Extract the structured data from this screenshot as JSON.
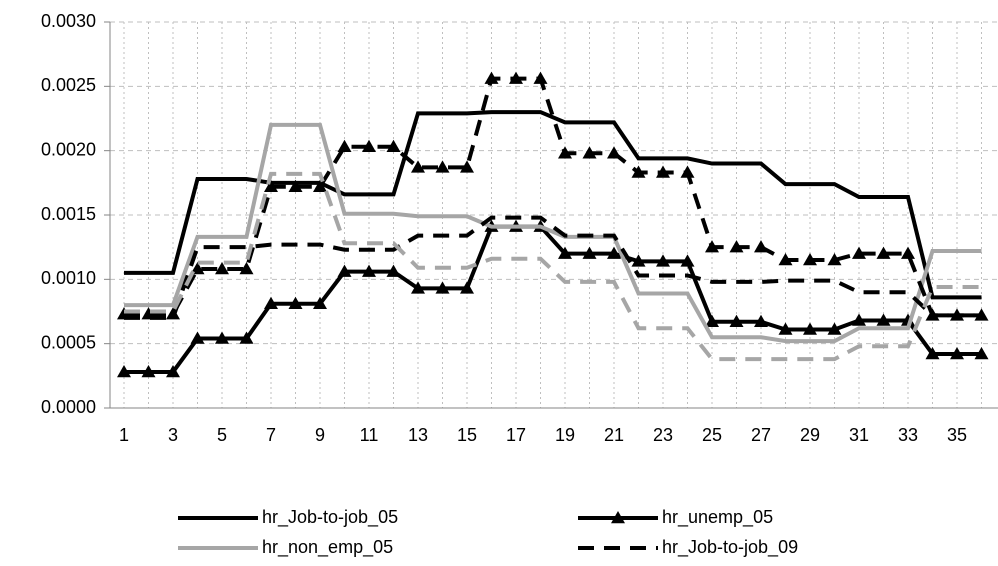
{
  "chart_data": {
    "type": "line",
    "categories": [
      1,
      null,
      3,
      null,
      5,
      null,
      7,
      null,
      9,
      null,
      11,
      null,
      13,
      null,
      15,
      null,
      17,
      null,
      19,
      null,
      21,
      null,
      23,
      null,
      25,
      null,
      27,
      null,
      29,
      null,
      31,
      null,
      33,
      null,
      35,
      null
    ],
    "ylim": [
      0,
      0.003
    ],
    "yticks": [
      {
        "value": 0,
        "label": "0.0000"
      },
      {
        "value": 0.0005,
        "label": "0.0005"
      },
      {
        "value": 0.001,
        "label": "0.0010"
      },
      {
        "value": 0.0015,
        "label": "0.0015"
      },
      {
        "value": 0.002,
        "label": "0.0020"
      },
      {
        "value": 0.0025,
        "label": "0.0025"
      },
      {
        "value": 0.003,
        "label": "0.0030"
      }
    ],
    "grid": true,
    "series": [
      {
        "name": "hr_Job-to-job_05",
        "color": "#000000",
        "dash": false,
        "marker": false,
        "values": [
          0.00105,
          0.00105,
          0.00105,
          0.00178,
          0.00178,
          0.00178,
          0.00175,
          0.00175,
          0.00175,
          0.00166,
          0.00166,
          0.00166,
          0.00229,
          0.00229,
          0.00229,
          0.0023,
          0.0023,
          0.0023,
          0.00222,
          0.00222,
          0.00222,
          0.00194,
          0.00194,
          0.00194,
          0.0019,
          0.0019,
          0.0019,
          0.00174,
          0.00174,
          0.00174,
          0.00164,
          0.00164,
          0.00164,
          0.00086,
          0.00086,
          0.00086
        ]
      },
      {
        "name": "hr_unemp_05",
        "color": "#000000",
        "dash": false,
        "marker": true,
        "values": [
          0.00028,
          0.00028,
          0.00028,
          0.00054,
          0.00054,
          0.00054,
          0.00081,
          0.00081,
          0.00081,
          0.00106,
          0.00106,
          0.00106,
          0.00093,
          0.00093,
          0.00093,
          0.00141,
          0.00141,
          0.00141,
          0.0012,
          0.0012,
          0.0012,
          0.00114,
          0.00114,
          0.00114,
          0.00067,
          0.00067,
          0.00067,
          0.00061,
          0.00061,
          0.00061,
          0.00068,
          0.00068,
          0.00068,
          0.00042,
          0.00042,
          0.00042
        ]
      },
      {
        "name": "hr_non_emp_05",
        "color": "#a6a6a6",
        "dash": false,
        "marker": false,
        "values": [
          0.0008,
          0.0008,
          0.0008,
          0.00133,
          0.00133,
          0.00133,
          0.0022,
          0.0022,
          0.0022,
          0.00151,
          0.00151,
          0.00151,
          0.00149,
          0.00149,
          0.00149,
          0.00141,
          0.00141,
          0.00141,
          0.00133,
          0.00133,
          0.00133,
          0.00089,
          0.00089,
          0.00089,
          0.00055,
          0.00055,
          0.00055,
          0.00052,
          0.00052,
          0.00052,
          0.00062,
          0.00062,
          0.00062,
          0.00122,
          0.00122,
          0.00122
        ]
      },
      {
        "name": "hr_Job-to-job_09",
        "color": "#000000",
        "dash": true,
        "marker": false,
        "values": [
          0.0007,
          0.0007,
          0.0007,
          0.00125,
          0.00125,
          0.00125,
          0.00127,
          0.00127,
          0.00127,
          0.00123,
          0.00123,
          0.00123,
          0.00134,
          0.00134,
          0.00134,
          0.00148,
          0.00148,
          0.00148,
          0.00134,
          0.00134,
          0.00134,
          0.00103,
          0.00103,
          0.00103,
          0.00098,
          0.00098,
          0.00098,
          0.00099,
          0.00099,
          0.00099,
          0.0009,
          0.0009,
          0.0009,
          0.00072,
          0.00072,
          0.00072
        ]
      },
      {
        "color": "#000000",
        "dash": true,
        "marker": true,
        "values": [
          0.00073,
          0.00073,
          0.00073,
          0.00108,
          0.00108,
          0.00108,
          0.00172,
          0.00172,
          0.00172,
          0.00203,
          0.00203,
          0.00203,
          0.00187,
          0.00187,
          0.00187,
          0.00256,
          0.00256,
          0.00256,
          0.00198,
          0.00198,
          0.00198,
          0.00183,
          0.00183,
          0.00183,
          0.00125,
          0.00125,
          0.00125,
          0.00115,
          0.00115,
          0.00115,
          0.0012,
          0.0012,
          0.0012,
          0.00072,
          0.00072,
          0.00072
        ]
      },
      {
        "color": "#a6a6a6",
        "dash": true,
        "marker": false,
        "values": [
          0.00075,
          0.00075,
          0.00075,
          0.00113,
          0.00113,
          0.00113,
          0.00182,
          0.00182,
          0.00182,
          0.00128,
          0.00128,
          0.00128,
          0.00109,
          0.00109,
          0.00109,
          0.00116,
          0.00116,
          0.00116,
          0.00098,
          0.00098,
          0.00098,
          0.00062,
          0.00062,
          0.00062,
          0.00038,
          0.00038,
          0.00038,
          0.00038,
          0.00038,
          0.00038,
          0.00048,
          0.00048,
          0.00048,
          0.00094,
          0.00094,
          0.00094
        ]
      }
    ]
  }
}
